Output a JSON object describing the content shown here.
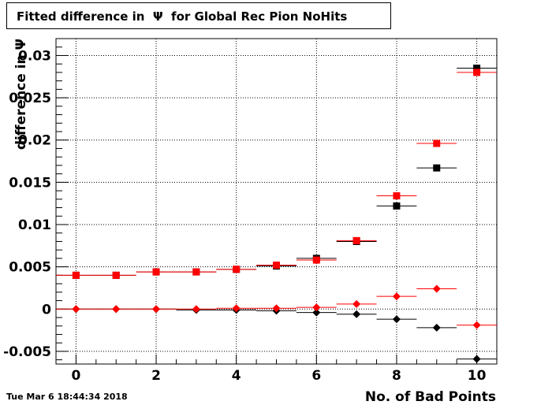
{
  "title": "Fitted difference in  Ψ  for Global Rec Pion NoHits",
  "datestamp": "Tue Mar  6 18:44:34 2018",
  "chart_data": {
    "type": "scatter",
    "xlabel": "No. of Bad Points",
    "ylabel": "difference in Ψ",
    "xlim": [
      -0.5,
      10.5
    ],
    "ylim": [
      -0.0065,
      0.032
    ],
    "x_ticks": [
      0,
      2,
      4,
      6,
      8,
      10
    ],
    "x_tick_labels": [
      "0",
      "2",
      "4",
      "6",
      "8",
      "10"
    ],
    "y_ticks": [
      -0.005,
      0,
      0.005,
      0.01,
      0.015,
      0.02,
      0.025,
      0.03
    ],
    "y_tick_labels": [
      "-0.005",
      "0",
      "0.005",
      "0.01",
      "0.015",
      "0.02",
      "0.025",
      "0.03"
    ],
    "grid": true,
    "x": [
      0,
      1,
      2,
      3,
      4,
      5,
      6,
      7,
      8,
      9,
      10
    ],
    "x_halfwidth": 0.5,
    "series": [
      {
        "marker": "square",
        "color": "#000000",
        "values": [
          0.004,
          0.004,
          0.0044,
          0.0044,
          0.0047,
          0.0051,
          0.006,
          0.008,
          0.0122,
          0.0167,
          0.0285
        ]
      },
      {
        "marker": "square",
        "color": "#ff0000",
        "values": [
          0.004,
          0.004,
          0.0044,
          0.0044,
          0.0047,
          0.0052,
          0.0058,
          0.0081,
          0.0134,
          0.0196,
          0.028
        ]
      },
      {
        "marker": "diamond",
        "color": "#000000",
        "values": [
          0.0,
          0.0,
          0.0,
          -0.0001,
          -0.0001,
          -0.0002,
          -0.0004,
          -0.0006,
          -0.0012,
          -0.0022,
          -0.0059
        ]
      },
      {
        "marker": "diamond",
        "color": "#ff0000",
        "values": [
          0.0,
          0.0,
          0.0,
          0.0,
          0.0001,
          0.0001,
          0.0002,
          0.0006,
          0.0015,
          0.0024,
          -0.0019
        ]
      }
    ]
  }
}
